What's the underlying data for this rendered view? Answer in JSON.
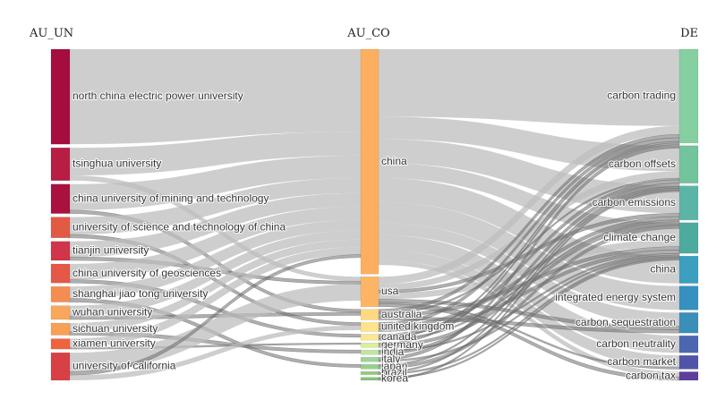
{
  "chart_data": {
    "type": "sankey",
    "columns": [
      "AU_UN",
      "AU_CO",
      "DE"
    ],
    "colors": {
      "link": "#bdbdbd",
      "link_dark": "#6e6e6e",
      "au_un": [
        "#a50d3e",
        "#b81e44",
        "#a9113f",
        "#e25a44",
        "#d1354a",
        "#e55747",
        "#f58d52",
        "#f9a75a",
        "#f8a055",
        "#f0633f",
        "#d84046"
      ],
      "au_co": [
        "#fdaf60",
        "#fdb565",
        "#fed980",
        "#fee38a",
        "#fbe694",
        "#d9ef98",
        "#c0e6a0",
        "#9fd39c",
        "#98cf8d",
        "#92c87e",
        "#88c47a"
      ],
      "de": [
        "#86cfa0",
        "#71c49c",
        "#5bb5a7",
        "#4dab9e",
        "#3c9fbf",
        "#3690c0",
        "#3a8fb9",
        "#4c66b0",
        "#5054a8",
        "#5d3e9c"
      ]
    },
    "nodes": {
      "au_un": [
        {
          "name": "north china electric power university",
          "value": 55
        },
        {
          "name": "tsinghua university",
          "value": 19
        },
        {
          "name": "china university of mining and technology",
          "value": 17
        },
        {
          "name": "university of science and technology of china",
          "value": 12
        },
        {
          "name": "tianjin university",
          "value": 11
        },
        {
          "name": "china university of geosciences",
          "value": 11
        },
        {
          "name": "shanghai jiao tong university",
          "value": 9
        },
        {
          "name": "wuhan university",
          "value": 8
        },
        {
          "name": "sichuan university",
          "value": 7
        },
        {
          "name": "xiamen university",
          "value": 6
        },
        {
          "name": "university of california",
          "value": 16
        }
      ],
      "au_co": [
        {
          "name": "china",
          "value": 150
        },
        {
          "name": "usa",
          "value": 20
        },
        {
          "name": "australia",
          "value": 7
        },
        {
          "name": "united kingdom",
          "value": 6
        },
        {
          "name": "canada",
          "value": 4
        },
        {
          "name": "germany",
          "value": 3
        },
        {
          "name": "india",
          "value": 3
        },
        {
          "name": "italy",
          "value": 3
        },
        {
          "name": "japan",
          "value": 3
        },
        {
          "name": "brazil",
          "value": 2
        },
        {
          "name": "korea",
          "value": 2
        }
      ],
      "de": [
        {
          "name": "carbon trading",
          "value": 55
        },
        {
          "name": "carbon offsets",
          "value": 22
        },
        {
          "name": "carbon emissions",
          "value": 20
        },
        {
          "name": "climate change",
          "value": 18
        },
        {
          "name": "china",
          "value": 16
        },
        {
          "name": "integrated energy system",
          "value": 14
        },
        {
          "name": "carbon sequestration",
          "value": 12
        },
        {
          "name": "carbon neutrality",
          "value": 10
        },
        {
          "name": "carbon market",
          "value": 8
        },
        {
          "name": "carbon tax",
          "value": 5
        }
      ]
    },
    "links_left": [
      [
        "north china electric power university",
        "china",
        55
      ],
      [
        "tsinghua university",
        "china",
        16
      ],
      [
        "tsinghua university",
        "usa",
        3
      ],
      [
        "china university of mining and technology",
        "china",
        15
      ],
      [
        "china university of mining and technology",
        "australia",
        2
      ],
      [
        "university of science and technology of china",
        "china",
        10
      ],
      [
        "university of science and technology of china",
        "united kingdom",
        2
      ],
      [
        "tianjin university",
        "china",
        9
      ],
      [
        "tianjin university",
        "usa",
        2
      ],
      [
        "china university of geosciences",
        "china",
        9
      ],
      [
        "china university of geosciences",
        "canada",
        2
      ],
      [
        "shanghai jiao tong university",
        "china",
        7
      ],
      [
        "shanghai jiao tong university",
        "japan",
        2
      ],
      [
        "wuhan university",
        "china",
        6
      ],
      [
        "wuhan university",
        "australia",
        2
      ],
      [
        "sichuan university",
        "china",
        5
      ],
      [
        "sichuan university",
        "india",
        2
      ],
      [
        "xiamen university",
        "china",
        5
      ],
      [
        "xiamen university",
        "germany",
        1
      ],
      [
        "university of california",
        "usa",
        11
      ],
      [
        "university of california",
        "china",
        2
      ],
      [
        "university of california",
        "united kingdom",
        3
      ]
    ],
    "links_right": [
      [
        "china",
        "carbon trading",
        45
      ],
      [
        "china",
        "carbon offsets",
        15
      ],
      [
        "china",
        "carbon emissions",
        16
      ],
      [
        "china",
        "climate change",
        10
      ],
      [
        "china",
        "china",
        16
      ],
      [
        "china",
        "integrated energy system",
        14
      ],
      [
        "china",
        "carbon sequestration",
        8
      ],
      [
        "china",
        "carbon neutrality",
        10
      ],
      [
        "china",
        "carbon market",
        7
      ],
      [
        "china",
        "carbon tax",
        3
      ],
      [
        "usa",
        "carbon trading",
        5
      ],
      [
        "usa",
        "carbon offsets",
        4
      ],
      [
        "usa",
        "carbon emissions",
        2
      ],
      [
        "usa",
        "climate change",
        4
      ],
      [
        "usa",
        "carbon sequestration",
        2
      ],
      [
        "usa",
        "carbon market",
        1
      ],
      [
        "usa",
        "carbon tax",
        2
      ],
      [
        "australia",
        "carbon trading",
        2
      ],
      [
        "australia",
        "carbon offsets",
        1
      ],
      [
        "australia",
        "climate change",
        2
      ],
      [
        "australia",
        "carbon sequestration",
        2
      ],
      [
        "united kingdom",
        "carbon trading",
        2
      ],
      [
        "united kingdom",
        "carbon emissions",
        2
      ],
      [
        "united kingdom",
        "climate change",
        2
      ],
      [
        "canada",
        "carbon offsets",
        2
      ],
      [
        "canada",
        "carbon trading",
        1
      ],
      [
        "canada",
        "carbon emissions",
        1
      ],
      [
        "germany",
        "carbon trading",
        1
      ],
      [
        "germany",
        "carbon emissions",
        2
      ],
      [
        "india",
        "climate change",
        1
      ],
      [
        "india",
        "carbon offsets",
        2
      ],
      [
        "italy",
        "carbon trading",
        2
      ],
      [
        "italy",
        "climate change",
        1
      ],
      [
        "japan",
        "carbon offsets",
        1
      ],
      [
        "japan",
        "carbon emissions",
        2
      ],
      [
        "brazil",
        "carbon offsets",
        1
      ],
      [
        "brazil",
        "climate change",
        1
      ],
      [
        "korea",
        "climate change",
        1
      ],
      [
        "korea",
        "carbon offsets",
        1
      ]
    ]
  }
}
